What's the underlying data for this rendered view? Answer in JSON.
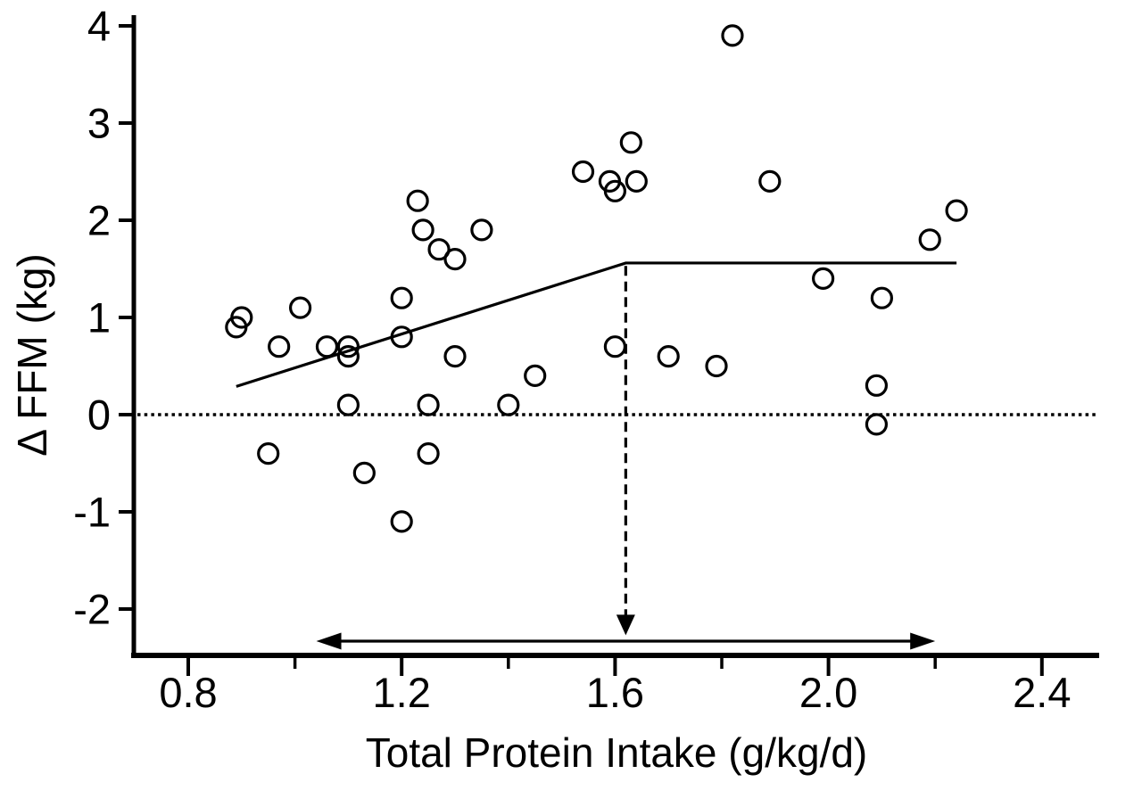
{
  "page": {
    "background": "#ffffff",
    "foreground": "#000000"
  },
  "chart_data": {
    "type": "scatter",
    "title": "",
    "xlabel": "Total Protein Intake (g/kg/d)",
    "ylabel": "Δ FFM (kg)",
    "xlim": [
      0.7,
      2.5
    ],
    "ylim": [
      -2.5,
      4.1
    ],
    "grid": false,
    "legend": null,
    "axis_color": "#000000",
    "marker": {
      "shape": "open-circle",
      "radius_px": 11,
      "color": "#000000",
      "fill": "none"
    },
    "x_major_ticks": [
      0.8,
      1.2,
      1.6,
      2.0,
      2.4
    ],
    "x_major_tick_labels": [
      "0.8",
      "1.2",
      "1.6",
      "2.0",
      "2.4"
    ],
    "x_minor_ticks": [
      1.0,
      1.4,
      1.8,
      2.2
    ],
    "y_ticks": [
      4,
      3,
      2,
      1,
      0,
      -1,
      -2
    ],
    "y_tick_labels": [
      "4",
      "3",
      "2",
      "1",
      "0",
      "-1",
      "-2"
    ],
    "points": [
      [
        0.89,
        0.9
      ],
      [
        0.9,
        1.0
      ],
      [
        0.95,
        -0.4
      ],
      [
        0.97,
        0.7
      ],
      [
        1.01,
        1.1
      ],
      [
        1.06,
        0.7
      ],
      [
        1.1,
        0.7
      ],
      [
        1.1,
        0.6
      ],
      [
        1.1,
        0.1
      ],
      [
        1.13,
        -0.6
      ],
      [
        1.2,
        1.2
      ],
      [
        1.2,
        0.8
      ],
      [
        1.2,
        -1.1
      ],
      [
        1.23,
        2.2
      ],
      [
        1.24,
        1.9
      ],
      [
        1.25,
        0.1
      ],
      [
        1.25,
        -0.4
      ],
      [
        1.27,
        1.7
      ],
      [
        1.3,
        1.6
      ],
      [
        1.3,
        0.6
      ],
      [
        1.35,
        1.9
      ],
      [
        1.4,
        0.1
      ],
      [
        1.45,
        0.4
      ],
      [
        1.54,
        2.5
      ],
      [
        1.59,
        2.4
      ],
      [
        1.6,
        2.3
      ],
      [
        1.6,
        0.7
      ],
      [
        1.63,
        2.8
      ],
      [
        1.64,
        2.4
      ],
      [
        1.7,
        0.6
      ],
      [
        1.79,
        0.5
      ],
      [
        1.82,
        3.9
      ],
      [
        1.89,
        2.4
      ],
      [
        1.99,
        1.4
      ],
      [
        2.09,
        0.3
      ],
      [
        2.09,
        -0.1
      ],
      [
        2.1,
        1.2
      ],
      [
        2.19,
        1.8
      ],
      [
        2.24,
        2.1
      ]
    ],
    "zero_reference_line": {
      "y": 0,
      "style": "dotted"
    },
    "segmented_regression_line": {
      "style": "solid",
      "vertices": [
        [
          0.89,
          0.29
        ],
        [
          1.62,
          1.56
        ],
        [
          2.24,
          1.56
        ]
      ],
      "breakpoint_x": 1.62
    },
    "breakpoint_arrow": {
      "style": "dashed-vertical-down",
      "x": 1.62,
      "y_start": 1.53,
      "y_tip": -2.27
    },
    "range_arrow": {
      "style": "double-headed-horizontal",
      "y": -2.33,
      "x_left": 1.04,
      "x_right": 2.2
    }
  }
}
